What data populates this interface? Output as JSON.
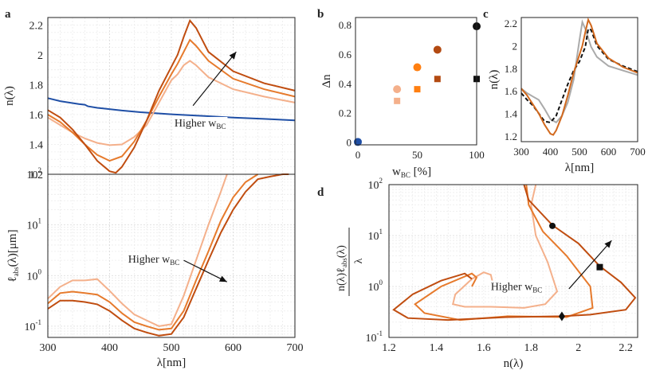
{
  "chart_data": [
    {
      "panel": "a",
      "type": "line",
      "log_y": false,
      "xlim": [
        300,
        700
      ],
      "ylim": [
        1.2,
        2.25
      ],
      "y_ticks": [
        1.2,
        1.4,
        1.6,
        1.8,
        2,
        2.2
      ],
      "y_tick_labels": [
        "1.2",
        "1.4",
        "1.6",
        "1.8",
        "2",
        "2.2"
      ],
      "ylabel": "n(λ)",
      "grid": true,
      "annotation": {
        "text": "Higher w",
        "sub": "BC",
        "arrow": {
          "from": [
            535,
            1.66
          ],
          "to": [
            605,
            2.02
          ]
        },
        "label_at": [
          505,
          1.52
        ]
      },
      "series": [
        {
          "color": "#1f4fa6",
          "x": [
            300,
            320,
            350,
            360,
            365,
            380,
            420,
            450,
            500,
            550,
            600,
            650,
            700
          ],
          "y": [
            1.71,
            1.69,
            1.67,
            1.666,
            1.655,
            1.645,
            1.627,
            1.616,
            1.602,
            1.591,
            1.58,
            1.571,
            1.561
          ]
        },
        {
          "color": "#f4b08b",
          "x": [
            300,
            320,
            340,
            360,
            380,
            400,
            420,
            440,
            460,
            480,
            500,
            510,
            520,
            530,
            540,
            560,
            600,
            650,
            700
          ],
          "y": [
            1.58,
            1.53,
            1.48,
            1.44,
            1.41,
            1.395,
            1.4,
            1.45,
            1.53,
            1.68,
            1.83,
            1.87,
            1.93,
            1.96,
            1.93,
            1.85,
            1.77,
            1.72,
            1.68
          ]
        },
        {
          "color": "#e67a2c",
          "x": [
            300,
            320,
            340,
            360,
            380,
            400,
            420,
            440,
            460,
            480,
            500,
            510,
            520,
            530,
            540,
            560,
            600,
            650,
            700
          ],
          "y": [
            1.6,
            1.55,
            1.48,
            1.4,
            1.33,
            1.29,
            1.32,
            1.42,
            1.56,
            1.72,
            1.87,
            1.94,
            2.02,
            2.1,
            2.06,
            1.96,
            1.84,
            1.77,
            1.72
          ]
        },
        {
          "color": "#c04d10",
          "x": [
            300,
            320,
            340,
            360,
            380,
            400,
            410,
            420,
            440,
            460,
            480,
            500,
            510,
            520,
            530,
            540,
            560,
            600,
            650,
            700
          ],
          "y": [
            1.63,
            1.58,
            1.5,
            1.4,
            1.29,
            1.22,
            1.21,
            1.25,
            1.38,
            1.56,
            1.76,
            1.92,
            2.0,
            2.12,
            2.23,
            2.18,
            2.02,
            1.89,
            1.81,
            1.76
          ]
        }
      ]
    },
    {
      "panel": "a-lower",
      "type": "line",
      "log_y": true,
      "xlim": [
        300,
        700
      ],
      "ylim": [
        0.06,
        100
      ],
      "x_ticks": [
        300,
        400,
        500,
        600,
        700
      ],
      "x_tick_labels": [
        "300",
        "400",
        "500",
        "600",
        "700"
      ],
      "y_ticks": [
        0.1,
        1,
        10,
        100
      ],
      "y_tick_labels": [
        "10",
        "10",
        "10",
        "10"
      ],
      "y_tick_exps": [
        "-1",
        "0",
        "1",
        "2"
      ],
      "xlabel": "λ[nm]",
      "ylabel": "ℓ",
      "ylabel_sub": "abs",
      "ylabel_rest": "(λ)[μm]",
      "grid": true,
      "annotation": {
        "text": "Higher w",
        "sub": "BC",
        "arrow": {
          "from": [
            520,
            2.0
          ],
          "to": [
            590,
            0.75
          ]
        },
        "label_at": [
          430,
          1.8
        ]
      },
      "series": [
        {
          "color": "#f4b08b",
          "x": [
            300,
            320,
            340,
            360,
            380,
            400,
            420,
            440,
            460,
            480,
            500,
            520,
            540,
            560,
            580,
            590
          ],
          "y": [
            0.35,
            0.6,
            0.8,
            0.8,
            0.85,
            0.5,
            0.28,
            0.17,
            0.13,
            0.1,
            0.11,
            0.4,
            2,
            10,
            45,
            100
          ]
        },
        {
          "color": "#e67a2c",
          "x": [
            300,
            320,
            340,
            360,
            380,
            400,
            420,
            440,
            460,
            480,
            500,
            520,
            540,
            560,
            580,
            600,
            620,
            640
          ],
          "y": [
            0.28,
            0.45,
            0.48,
            0.45,
            0.42,
            0.3,
            0.18,
            0.12,
            0.1,
            0.085,
            0.09,
            0.2,
            0.8,
            3,
            12,
            35,
            70,
            100
          ]
        },
        {
          "color": "#c04d10",
          "x": [
            300,
            320,
            340,
            360,
            380,
            400,
            420,
            440,
            460,
            480,
            500,
            520,
            540,
            560,
            580,
            600,
            620,
            640,
            660,
            680,
            690
          ],
          "y": [
            0.22,
            0.32,
            0.32,
            0.3,
            0.27,
            0.2,
            0.13,
            0.09,
            0.075,
            0.065,
            0.07,
            0.15,
            0.55,
            2,
            7,
            20,
            45,
            80,
            90,
            100,
            100
          ]
        }
      ]
    },
    {
      "panel": "b",
      "type": "scatter",
      "xlim": [
        -2,
        100
      ],
      "ylim": [
        -0.02,
        0.85
      ],
      "x_ticks": [
        0,
        50,
        100
      ],
      "x_tick_labels": [
        "0",
        "50",
        "100"
      ],
      "y_ticks": [
        0,
        0.2,
        0.4,
        0.6,
        0.8
      ],
      "y_tick_labels": [
        "0",
        "0.2",
        "0.4",
        "0.6",
        "0.8"
      ],
      "xlabel": "w",
      "xlabel_sub": "BC",
      "xlabel_rest": " [%]",
      "ylabel": "Δn",
      "grid": false,
      "points": [
        {
          "x": 0,
          "y": 0,
          "marker": "circle",
          "color": "#1f4fa6"
        },
        {
          "x": 33,
          "y": 0.36,
          "marker": "circle",
          "color": "#f4b08b"
        },
        {
          "x": 33,
          "y": 0.28,
          "marker": "square",
          "color": "#f4b08b"
        },
        {
          "x": 50,
          "y": 0.51,
          "marker": "circle",
          "color": "#ff7f11"
        },
        {
          "x": 50,
          "y": 0.36,
          "marker": "square",
          "color": "#ff7f11"
        },
        {
          "x": 67,
          "y": 0.63,
          "marker": "circle",
          "color": "#b34a12"
        },
        {
          "x": 67,
          "y": 0.43,
          "marker": "square",
          "color": "#b34a12"
        },
        {
          "x": 100,
          "y": 0.79,
          "marker": "circle",
          "color": "#111111"
        },
        {
          "x": 100,
          "y": 0.43,
          "marker": "square",
          "color": "#111111"
        }
      ]
    },
    {
      "panel": "c",
      "type": "line",
      "xlim": [
        300,
        700
      ],
      "ylim": [
        1.15,
        2.25
      ],
      "x_ticks": [
        300,
        400,
        500,
        600,
        700
      ],
      "x_tick_labels": [
        "300",
        "400",
        "500",
        "600",
        "700"
      ],
      "y_ticks": [
        1.2,
        1.4,
        1.6,
        1.8,
        2,
        2.2
      ],
      "y_tick_labels": [
        "1.2",
        "1.4",
        "1.6",
        "1.8",
        "2",
        "2.2"
      ],
      "xlabel": "λ[nm]",
      "ylabel": "n(λ)",
      "grid": false,
      "series": [
        {
          "color": "#aaaaaa",
          "dash": false,
          "x": [
            300,
            320,
            340,
            360,
            380,
            400,
            420,
            440,
            460,
            480,
            500,
            510,
            520,
            540,
            560,
            600,
            650,
            700
          ],
          "y": [
            1.62,
            1.58,
            1.55,
            1.52,
            1.44,
            1.35,
            1.32,
            1.38,
            1.5,
            1.7,
            2.05,
            2.21,
            2.15,
            1.99,
            1.9,
            1.82,
            1.78,
            1.74
          ]
        },
        {
          "color": "#111111",
          "dash": true,
          "x": [
            300,
            320,
            340,
            360,
            380,
            400,
            420,
            440,
            460,
            480,
            500,
            520,
            530,
            540,
            560,
            600,
            650,
            700
          ],
          "y": [
            1.58,
            1.52,
            1.47,
            1.4,
            1.33,
            1.32,
            1.38,
            1.52,
            1.66,
            1.78,
            1.86,
            1.99,
            2.15,
            2.14,
            2.0,
            1.88,
            1.82,
            1.77
          ]
        },
        {
          "color": "#d2691e",
          "dash": false,
          "x": [
            300,
            320,
            340,
            360,
            380,
            400,
            410,
            420,
            440,
            460,
            480,
            500,
            510,
            520,
            530,
            540,
            560,
            600,
            650,
            700
          ],
          "y": [
            1.62,
            1.56,
            1.48,
            1.4,
            1.3,
            1.22,
            1.21,
            1.25,
            1.38,
            1.56,
            1.76,
            1.92,
            2.0,
            2.12,
            2.23,
            2.18,
            2.02,
            1.89,
            1.81,
            1.76
          ]
        }
      ]
    },
    {
      "panel": "d",
      "type": "line",
      "log_y": true,
      "xlim": [
        1.2,
        2.25
      ],
      "ylim": [
        0.1,
        100
      ],
      "x_ticks": [
        1.2,
        1.4,
        1.6,
        1.8,
        2,
        2.2
      ],
      "x_tick_labels": [
        "1.2",
        "1.4",
        "1.6",
        "1.8",
        "2",
        "2.2"
      ],
      "y_ticks": [
        0.1,
        1,
        10,
        100
      ],
      "y_tick_labels": [
        "10",
        "10",
        "10",
        "10"
      ],
      "y_tick_exps": [
        "-1",
        "0",
        "1",
        "2"
      ],
      "xlabel": "n(λ)",
      "ylabel_num": "n(λ)ℓ",
      "ylabel_num_sub": "abs",
      "ylabel_num_rest": "(λ)",
      "ylabel_den": "λ",
      "grid": true,
      "annotation": {
        "text": "Higher w",
        "sub": "BC",
        "arrow": {
          "from": [
            1.96,
            0.9
          ],
          "to": [
            2.14,
            8
          ]
        },
        "label_at": [
          1.63,
          0.85
        ]
      },
      "series": [
        {
          "color": "#f4b08b",
          "x": [
            1.82,
            1.8,
            1.82,
            1.87,
            1.91,
            1.86,
            1.77,
            1.63,
            1.52,
            1.47,
            1.48,
            1.55,
            1.6,
            1.63,
            1.64
          ],
          "y": [
            100,
            40,
            10,
            3,
            0.8,
            0.45,
            0.38,
            0.4,
            0.4,
            0.45,
            0.7,
            1.4,
            1.9,
            1.7,
            1.1
          ]
        },
        {
          "color": "#e67a2c",
          "x": [
            1.78,
            1.79,
            1.85,
            1.95,
            2.05,
            2.06,
            1.95,
            1.7,
            1.5,
            1.35,
            1.31,
            1.42,
            1.55,
            1.57,
            1.55
          ],
          "y": [
            100,
            40,
            12,
            4,
            1.0,
            0.38,
            0.25,
            0.26,
            0.22,
            0.3,
            0.45,
            1.0,
            1.8,
            1.5,
            1.0
          ]
        },
        {
          "color": "#c04d10",
          "x": [
            1.77,
            1.79,
            1.89,
            2.0,
            2.09,
            2.18,
            2.24,
            2.2,
            2.05,
            1.93,
            1.7,
            1.45,
            1.28,
            1.22,
            1.3,
            1.42,
            1.52,
            1.55
          ],
          "y": [
            100,
            50,
            16,
            7,
            2.5,
            1.2,
            0.6,
            0.35,
            0.28,
            0.26,
            0.25,
            0.22,
            0.24,
            0.35,
            0.7,
            1.3,
            1.8,
            1.4
          ]
        }
      ],
      "markers": [
        {
          "x": 1.89,
          "y": 15.5,
          "marker": "circle",
          "color": "#111111"
        },
        {
          "x": 2.09,
          "y": 2.4,
          "marker": "square",
          "color": "#111111"
        },
        {
          "x": 1.93,
          "y": 0.26,
          "marker": "diamond",
          "color": "#111111"
        }
      ]
    }
  ],
  "panel_labels": {
    "a": "a",
    "b": "b",
    "c": "c",
    "d": "d"
  }
}
